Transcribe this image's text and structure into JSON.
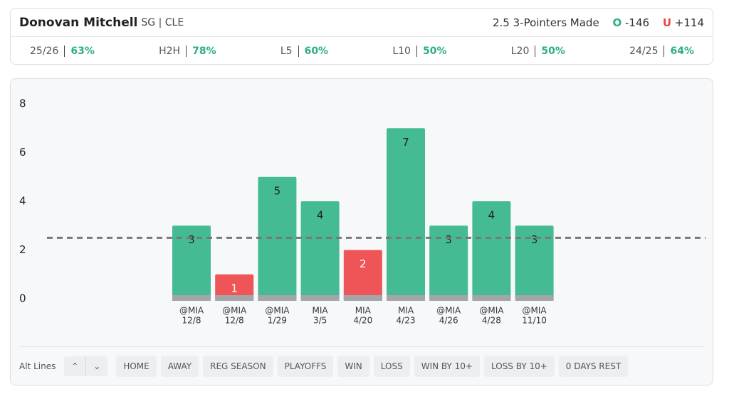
{
  "header": {
    "player": "Donovan Mitchell",
    "position": "SG | CLE",
    "line": 2.5,
    "market": "3-Pointers Made",
    "over_label": "O",
    "over_odds": "-146",
    "under_label": "U",
    "under_odds": "+114"
  },
  "stats": [
    {
      "label": "25/26",
      "value": "63%"
    },
    {
      "label": "H2H",
      "value": "78%"
    },
    {
      "label": "L5",
      "value": "60%"
    },
    {
      "label": "L10",
      "value": "50%"
    },
    {
      "label": "L20",
      "value": "50%"
    },
    {
      "label": "24/25",
      "value": "64%"
    }
  ],
  "chart_data": {
    "type": "bar",
    "categories": [
      "@MIA",
      "@MIA",
      "@MIA",
      "MIA",
      "MIA",
      "MIA",
      "@MIA",
      "@MIA",
      "@MIA"
    ],
    "dates": [
      "12/8",
      "12/8",
      "1/29",
      "3/5",
      "4/20",
      "4/23",
      "4/26",
      "4/28",
      "11/10"
    ],
    "values": [
      3,
      1,
      5,
      4,
      2,
      7,
      3,
      4,
      3
    ],
    "over_color": "#45bb94",
    "under_color": "#ef5556",
    "ylim": [
      0,
      8
    ],
    "yticks": [
      0,
      2,
      4,
      6,
      8
    ]
  },
  "filters": {
    "alt_lines": "Alt Lines",
    "buttons": [
      "HOME",
      "AWAY",
      "REG SEASON",
      "PLAYOFFS",
      "WIN",
      "LOSS",
      "WIN BY 10+",
      "LOSS BY 10+",
      "0 DAYS REST"
    ]
  }
}
